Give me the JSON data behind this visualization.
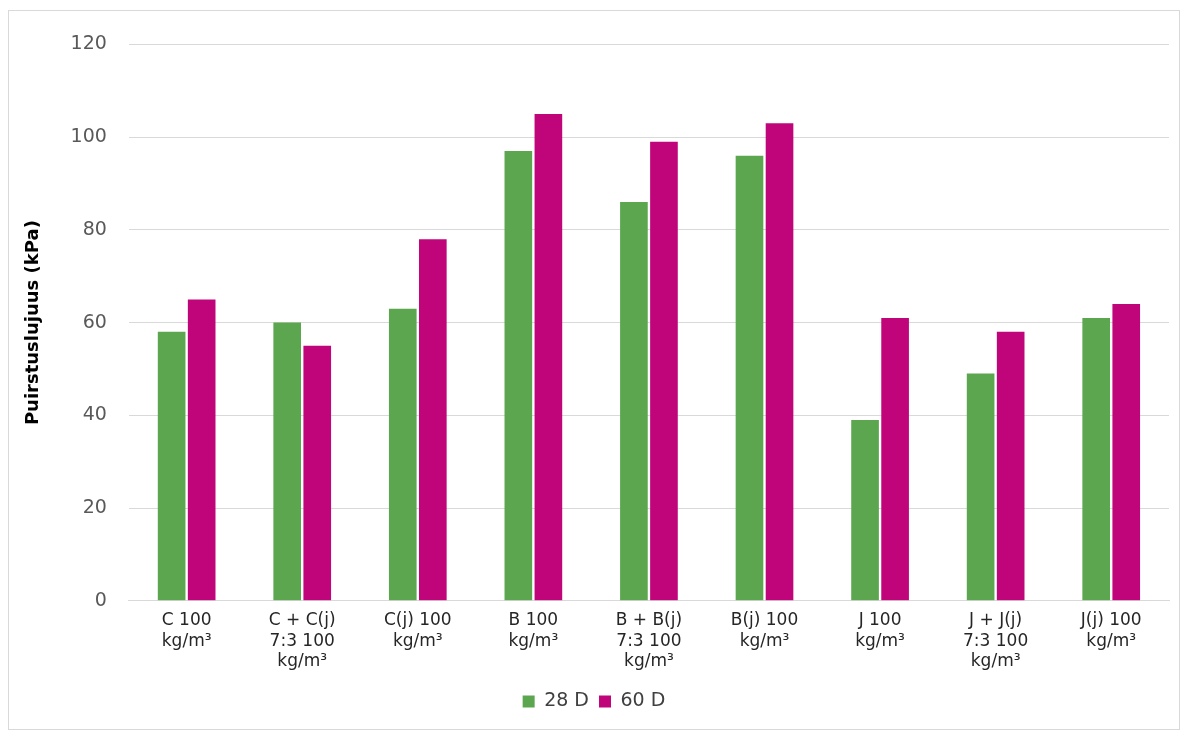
{
  "chart_data": {
    "type": "bar",
    "ylabel": "Puirstuslujuus (kPa)",
    "categories": [
      "C 100 kg/m³",
      "C + C(j) 7:3 100 kg/m³",
      "C(j) 100 kg/m³",
      "B 100 kg/m³",
      "B + B(j) 7:3 100 kg/m³",
      "B(j) 100 kg/m³",
      "J 100 kg/m³",
      "J + J(j) 7:3 100 kg/m³",
      "J(j) 100 kg/m³"
    ],
    "series": [
      {
        "name": "28 D",
        "color": "#5ba64f",
        "values": [
          58,
          60,
          63,
          97,
          86,
          96,
          39,
          49,
          61
        ]
      },
      {
        "name": "60 D",
        "color": "#c0047a",
        "values": [
          65,
          55,
          78,
          105,
          99,
          103,
          61,
          58,
          64
        ]
      }
    ],
    "ylim": [
      0,
      120
    ],
    "yticks": [
      0,
      20,
      40,
      60,
      80,
      100,
      120
    ],
    "grid": "y",
    "legend": "bottom"
  }
}
